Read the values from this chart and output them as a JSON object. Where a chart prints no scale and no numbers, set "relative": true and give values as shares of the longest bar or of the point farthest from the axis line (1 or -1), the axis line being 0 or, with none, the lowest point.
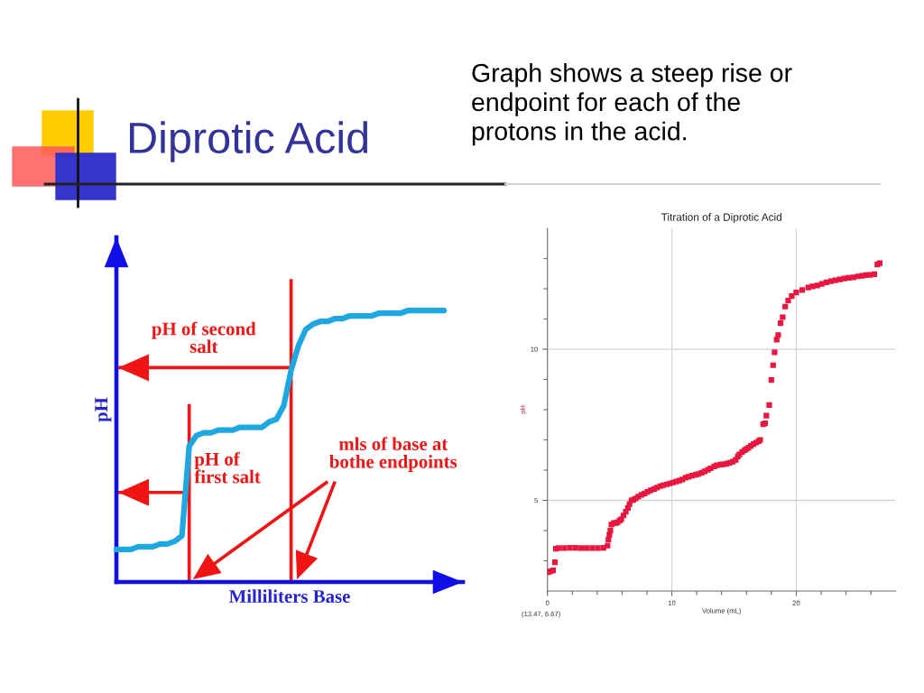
{
  "chart_data": [
    {
      "type": "line",
      "title": "Diprotic Acid",
      "xlabel": "Milliliters Base",
      "ylabel": "pH",
      "relative": true,
      "tick_labels": false,
      "marker": "none",
      "line_style": "solid",
      "categories": [
        null,
        null,
        null,
        null,
        null,
        null,
        null,
        null,
        null,
        null,
        null,
        null,
        null,
        null,
        null,
        null,
        null,
        null,
        null,
        null,
        null,
        null,
        null,
        null,
        null,
        null,
        null,
        null,
        null,
        null,
        null,
        null,
        null,
        null,
        null,
        null,
        null,
        null,
        null,
        null,
        null,
        null,
        null,
        null,
        null,
        null
      ],
      "series": [
        {
          "color": "#1ea7e1",
          "values": [
            0.12,
            0.12,
            0.12,
            0.13,
            0.13,
            0.13,
            0.14,
            0.14,
            0.15,
            0.17,
            0.5,
            0.54,
            0.55,
            0.55,
            0.56,
            0.56,
            0.56,
            0.57,
            0.57,
            0.57,
            0.57,
            0.59,
            0.6,
            0.65,
            0.78,
            0.87,
            0.93,
            0.95,
            0.96,
            0.96,
            0.97,
            0.97,
            0.98,
            0.98,
            0.98,
            0.98,
            0.99,
            0.99,
            0.99,
            0.99,
            1.0,
            1.0,
            1.0,
            1.0,
            1.0,
            1.0
          ]
        }
      ],
      "ref_lines": [
        {
          "axis": "y",
          "value": 0.33,
          "label": "pH of\nfirst salt",
          "color": "#f01414"
        },
        {
          "axis": "y",
          "value": 0.79,
          "label": "pH of second\nsalt",
          "color": "#f01414"
        }
      ],
      "annotations": [
        "mls of base at\nbothe endpoints"
      ]
    },
    {
      "type": "scatter",
      "title": "Titration of a Diprotic Acid",
      "subtitle": "Graph shows a steep rise or\nendpoint for each of the\nprotons in the acid.",
      "xlabel": "Volume (mL)",
      "ylabel": "pH",
      "marker": "square",
      "grid": true,
      "xlim": [
        0,
        28
      ],
      "ylim": [
        2,
        14
      ],
      "xticks": [
        0,
        {
          "value": 2,
          "label": null
        },
        {
          "value": 4,
          "label": null
        },
        {
          "value": 6,
          "label": null
        },
        {
          "value": 8,
          "label": null
        },
        10,
        {
          "value": 12,
          "label": null
        },
        {
          "value": 14,
          "label": null
        },
        {
          "value": 16,
          "label": null
        },
        {
          "value": 18,
          "label": null
        },
        20,
        {
          "value": 22,
          "label": null
        },
        {
          "value": 24,
          "label": null
        },
        {
          "value": 26,
          "label": null
        }
      ],
      "yticks": [
        {
          "value": 3,
          "label": null
        },
        {
          "value": 4,
          "label": null
        },
        5,
        {
          "value": 6,
          "label": null
        },
        {
          "value": 7,
          "label": null
        },
        {
          "value": 8,
          "label": null
        },
        {
          "value": 9,
          "label": null
        },
        10,
        {
          "value": 11,
          "label": null
        },
        {
          "value": 12,
          "label": null
        },
        {
          "value": 13,
          "label": null
        }
      ],
      "x": [
        0.05,
        0.25,
        0.45,
        0.6,
        0.68,
        0.9,
        1.35,
        1.8,
        2.25,
        2.7,
        3.15,
        3.6,
        4.05,
        4.5,
        4.83,
        4.9,
        4.98,
        5.06,
        5.14,
        5.34,
        5.5,
        5.63,
        5.8,
        5.94,
        6.11,
        6.3,
        6.47,
        6.6,
        6.76,
        6.9,
        7.08,
        7.3,
        7.56,
        7.8,
        8.04,
        8.3,
        8.57,
        8.8,
        9.08,
        9.3,
        9.59,
        9.85,
        10.1,
        10.35,
        10.6,
        10.85,
        11.11,
        11.35,
        11.62,
        11.9,
        12.13,
        12.4,
        12.63,
        12.9,
        13.12,
        13.4,
        13.62,
        13.9,
        14.13,
        14.4,
        14.64,
        14.9,
        15.14,
        15.3,
        15.43,
        15.65,
        15.85,
        16.0,
        16.16,
        16.35,
        16.57,
        16.78,
        16.98,
        17.1,
        17.34,
        17.5,
        17.6,
        17.83,
        18.0,
        18.14,
        18.26,
        18.43,
        18.55,
        18.74,
        18.91,
        19.11,
        19.35,
        19.64,
        20.0,
        20.48,
        20.97,
        21.3,
        21.69,
        22.05,
        22.42,
        22.8,
        23.14,
        23.5,
        23.86,
        24.2,
        24.59,
        24.95,
        25.31,
        25.6,
        25.92,
        26.28,
        26.52,
        26.71
      ],
      "series": [
        {
          "color": "#e8173f",
          "values": [
            2.62,
            2.65,
            2.68,
            2.95,
            3.4,
            3.42,
            3.42,
            3.43,
            3.43,
            3.42,
            3.42,
            3.42,
            3.42,
            3.43,
            3.5,
            3.7,
            3.86,
            4.0,
            4.2,
            4.25,
            4.25,
            4.27,
            4.33,
            4.38,
            4.5,
            4.62,
            4.75,
            4.88,
            5.0,
            5.02,
            5.06,
            5.12,
            5.18,
            5.23,
            5.28,
            5.33,
            5.38,
            5.42,
            5.47,
            5.5,
            5.53,
            5.56,
            5.59,
            5.62,
            5.65,
            5.69,
            5.75,
            5.78,
            5.82,
            5.85,
            5.87,
            5.91,
            5.96,
            6.01,
            6.06,
            6.12,
            6.16,
            6.18,
            6.19,
            6.21,
            6.24,
            6.28,
            6.34,
            6.45,
            6.52,
            6.6,
            6.66,
            6.7,
            6.74,
            6.8,
            6.86,
            6.91,
            6.96,
            7.0,
            7.52,
            7.55,
            7.8,
            8.15,
            8.98,
            9.47,
            9.9,
            10.32,
            10.47,
            10.86,
            11.06,
            11.41,
            11.61,
            11.76,
            11.88,
            11.96,
            12.04,
            12.08,
            12.11,
            12.16,
            12.21,
            12.25,
            12.28,
            12.31,
            12.34,
            12.36,
            12.38,
            12.41,
            12.43,
            12.45,
            12.46,
            12.48,
            12.8,
            12.85
          ]
        }
      ],
      "annotations": [
        "(13.47, 6.67)"
      ]
    }
  ]
}
